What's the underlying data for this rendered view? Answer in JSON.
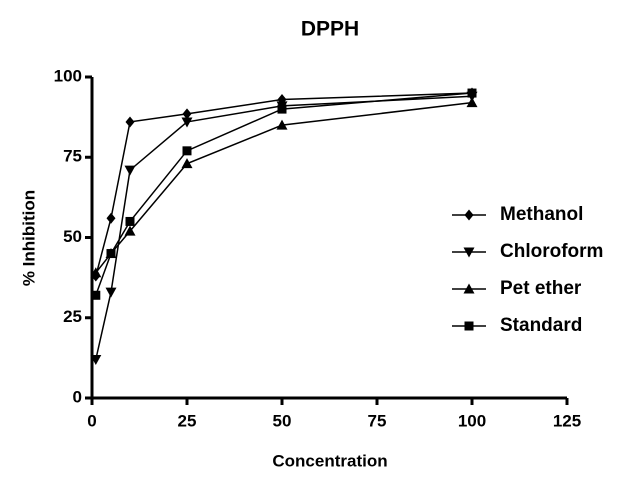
{
  "chart_data": {
    "type": "line",
    "title": "DPPH",
    "x_label": "Concentration",
    "y_label": "% Inhibition",
    "x": [
      1,
      5,
      10,
      25,
      50,
      100
    ],
    "series": [
      {
        "name": "Methanol",
        "color": "#000000",
        "marker": "diamond",
        "values": [
          38,
          56,
          86,
          88.5,
          93,
          95
        ]
      },
      {
        "name": "Chloroform",
        "color": "#000000",
        "marker": "triangle-down",
        "values": [
          12,
          33,
          71,
          86,
          91,
          94
        ]
      },
      {
        "name": "Pet ether",
        "color": "#000000",
        "marker": "triangle-up",
        "values": [
          39,
          45,
          52,
          73,
          85,
          92
        ]
      },
      {
        "name": "Standard",
        "color": "#000000",
        "marker": "square",
        "values": [
          32,
          45,
          55,
          77,
          90,
          95
        ]
      }
    ],
    "xlim": [
      0,
      125
    ],
    "xticks": [
      0,
      25,
      50,
      75,
      100,
      125
    ],
    "ylim": [
      0,
      100
    ],
    "yticks": [
      0,
      25,
      50,
      75,
      100
    ],
    "grid": false,
    "legend": "right"
  }
}
